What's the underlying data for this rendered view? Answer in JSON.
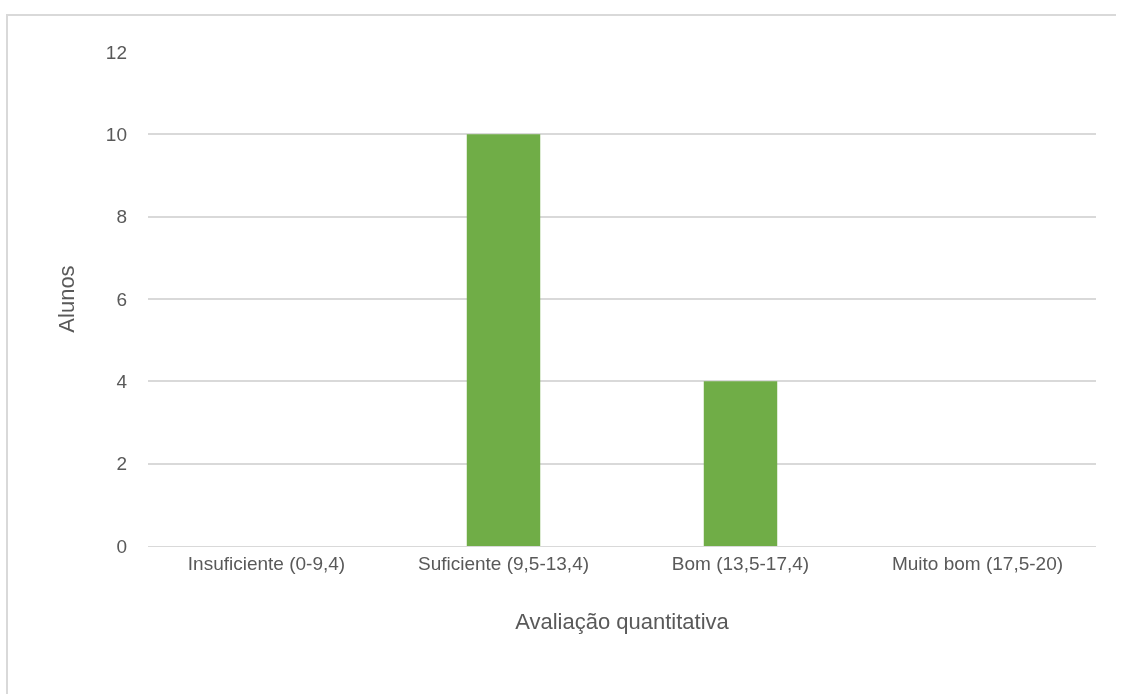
{
  "chart_data": {
    "type": "bar",
    "xlabel": "Avaliação quantitativa",
    "ylabel": "Alunos",
    "categories": [
      "Insuficiente (0-9,4)",
      "Suficiente (9,5-13,4)",
      "Bom (13,5-17,4)",
      "Muito bom (17,5-20)"
    ],
    "values": [
      0,
      10,
      4,
      0
    ],
    "color": "#70ad47",
    "ylim": [
      0,
      12
    ],
    "yticks": [
      0,
      2,
      4,
      6,
      8,
      10,
      12
    ],
    "grid": "y"
  }
}
